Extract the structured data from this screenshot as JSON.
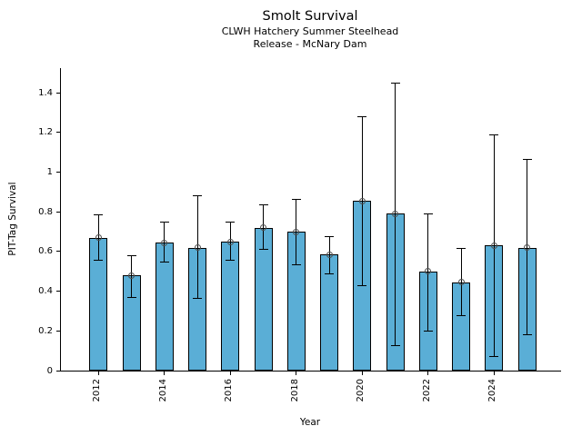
{
  "chart_data": {
    "type": "bar",
    "title": "Smolt Survival",
    "subtitle": [
      "CLWH Hatchery Summer Steelhead",
      "Release - McNary Dam"
    ],
    "xlabel": "Year",
    "ylabel": "PIT-Tag Survival",
    "categories": [
      "2012",
      "2013",
      "2014",
      "2015",
      "2016",
      "2017",
      "2018",
      "2019",
      "2020",
      "2021",
      "2022",
      "2023",
      "2024",
      "2025"
    ],
    "values": [
      0.67,
      0.48,
      0.645,
      0.62,
      0.65,
      0.72,
      0.7,
      0.585,
      0.855,
      0.79,
      0.5,
      0.445,
      0.63,
      0.62
    ],
    "error_low": [
      0.555,
      0.37,
      0.545,
      0.365,
      0.555,
      0.61,
      0.535,
      0.49,
      0.43,
      0.125,
      0.2,
      0.275,
      0.07,
      0.18
    ],
    "error_high": [
      0.785,
      0.58,
      0.75,
      0.88,
      0.75,
      0.835,
      0.865,
      0.675,
      1.28,
      1.45,
      0.79,
      0.615,
      1.19,
      1.065
    ],
    "ylim": [
      0,
      1.525
    ],
    "yticks": [
      0,
      0.2,
      0.4,
      0.6,
      0.8,
      1,
      1.2,
      1.4
    ],
    "ytick_labels": [
      "0",
      "0.2",
      "0.4",
      "0.6",
      "0.8",
      "1",
      "1.2",
      "1.4"
    ],
    "xticks": [
      "2012",
      "2014",
      "2016",
      "2018",
      "2020",
      "2022",
      "2024"
    ],
    "marker": "open-circle",
    "grid": false,
    "legend": null,
    "colors": {
      "bar": "#5aaed6",
      "bar_edge": "#000000",
      "error": "#000000",
      "marker_edge": "#4d4d4d",
      "text": "#000000",
      "background": "#ffffff"
    }
  }
}
